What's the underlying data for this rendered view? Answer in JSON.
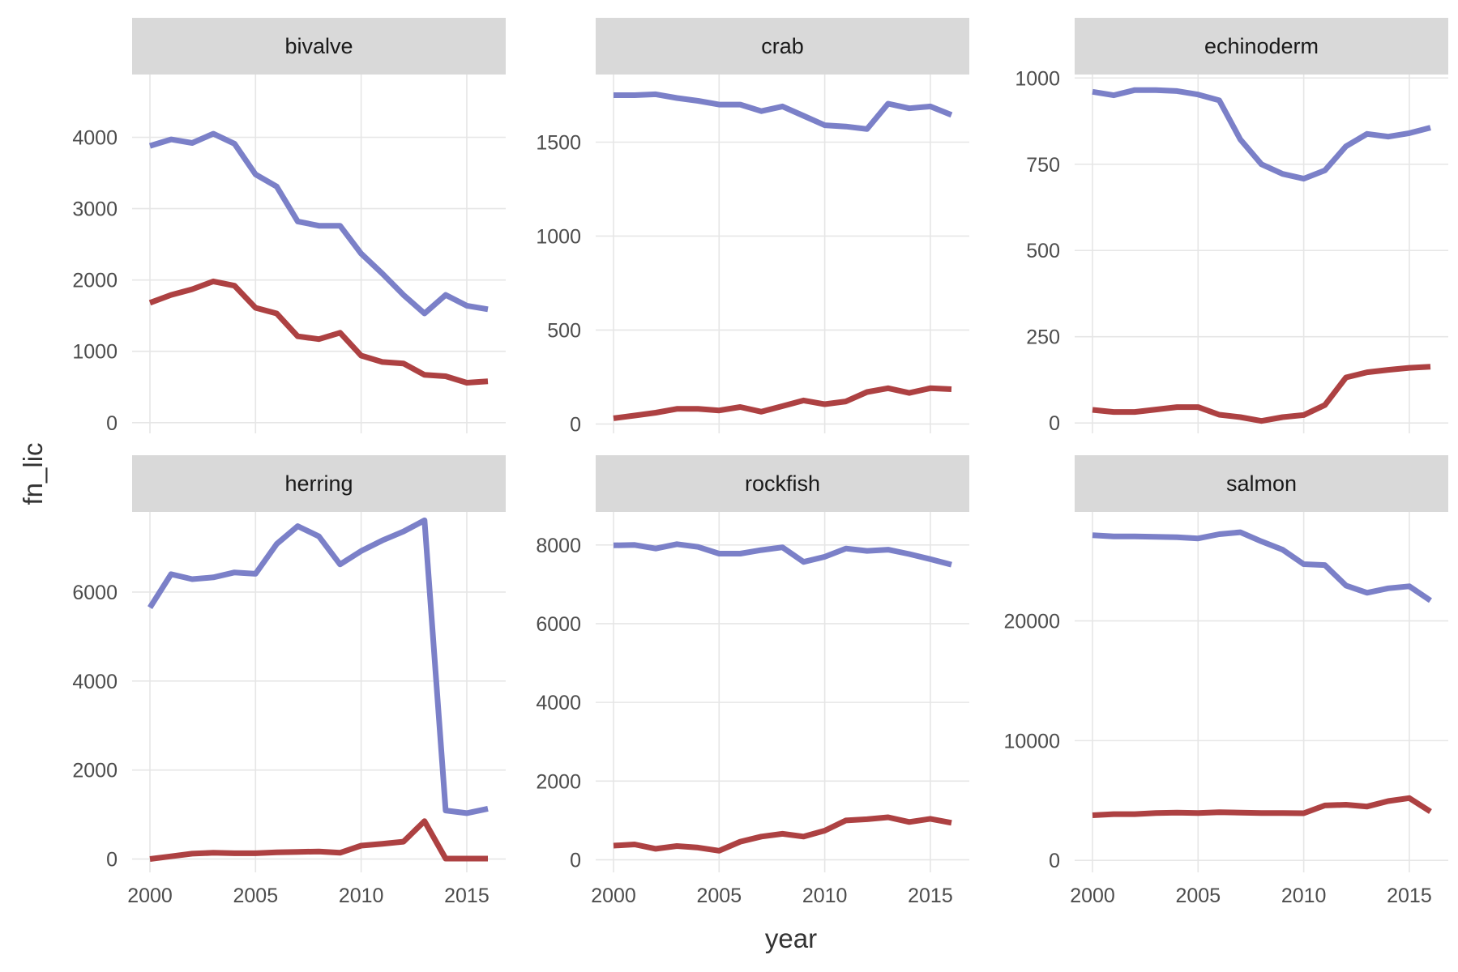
{
  "chart_data": {
    "type": "line",
    "xlabel": "year",
    "ylabel": "fn_lic",
    "x_ticks": [
      2000,
      2005,
      2010,
      2015
    ],
    "xlim": [
      2000,
      2016
    ],
    "grid": true,
    "series_colors": [
      "#7b80c8",
      "#ad4142"
    ],
    "x": [
      2000,
      2001,
      2002,
      2003,
      2004,
      2005,
      2006,
      2007,
      2008,
      2009,
      2010,
      2011,
      2012,
      2013,
      2014,
      2015,
      2016
    ],
    "panels": [
      {
        "title": "bivalve",
        "ylim": [
          -150,
          4880
        ],
        "y_ticks": [
          0,
          1000,
          2000,
          3000,
          4000
        ],
        "series": [
          {
            "values": [
              3880,
              3970,
              3920,
              4050,
              3910,
              3480,
              3310,
              2820,
              2760,
              2760,
              2370,
              2090,
              1790,
              1530,
              1790,
              1640,
              1590
            ]
          },
          {
            "values": [
              1680,
              1790,
              1870,
              1980,
              1920,
              1610,
              1530,
              1210,
              1170,
              1260,
              940,
              850,
              830,
              670,
              650,
              560,
              580
            ]
          }
        ]
      },
      {
        "title": "crab",
        "ylim": [
          -50,
          1860
        ],
        "y_ticks": [
          0,
          500,
          1000,
          1500
        ],
        "series": [
          {
            "values": [
              1750,
              1750,
              1755,
              1735,
              1720,
              1700,
              1700,
              1665,
              1690,
              1640,
              1590,
              1583,
              1570,
              1705,
              1680,
              1690,
              1645
            ]
          },
          {
            "values": [
              30,
              45,
              60,
              80,
              80,
              72,
              90,
              65,
              95,
              125,
              105,
              120,
              170,
              190,
              165,
              190,
              185
            ]
          }
        ]
      },
      {
        "title": "echinoderm",
        "ylim": [
          -30,
          1010
        ],
        "y_ticks": [
          0,
          250,
          500,
          750,
          1000
        ],
        "series": [
          {
            "values": [
              960,
              950,
              965,
              965,
              962,
              952,
              935,
              822,
              750,
              722,
              708,
              732,
              802,
              838,
              830,
              840,
              856
            ]
          },
          {
            "values": [
              38,
              32,
              32,
              39,
              46,
              46,
              24,
              17,
              6,
              17,
              23,
              52,
              132,
              147,
              154,
              160,
              163
            ]
          }
        ]
      },
      {
        "title": "herring",
        "ylim": [
          -300,
          7800
        ],
        "y_ticks": [
          0,
          2000,
          4000,
          6000
        ],
        "series": [
          {
            "values": [
              5650,
              6400,
              6290,
              6330,
              6440,
              6410,
              7080,
              7480,
              7250,
              6620,
              6920,
              7160,
              7360,
              7610,
              1090,
              1030,
              1130
            ]
          },
          {
            "values": [
              0,
              60,
              120,
              140,
              130,
              130,
              150,
              160,
              170,
              140,
              300,
              340,
              390,
              850,
              10,
              10,
              10
            ]
          }
        ]
      },
      {
        "title": "rockfish",
        "ylim": [
          -320,
          8840
        ],
        "y_ticks": [
          0,
          2000,
          4000,
          6000,
          8000
        ],
        "series": [
          {
            "values": [
              7990,
              8000,
              7910,
              8020,
              7950,
              7780,
              7780,
              7870,
              7940,
              7570,
              7700,
              7910,
              7850,
              7880,
              7770,
              7640,
              7500
            ]
          },
          {
            "values": [
              360,
              390,
              280,
              350,
              310,
              230,
              460,
              590,
              660,
              590,
              740,
              1000,
              1030,
              1080,
              960,
              1040,
              940
            ]
          }
        ]
      },
      {
        "title": "salmon",
        "ylim": [
          -1000,
          29100
        ],
        "y_ticks": [
          0,
          10000,
          20000
        ],
        "series": [
          {
            "values": [
              27150,
              27050,
              27050,
              27020,
              26990,
              26890,
              27240,
              27400,
              26640,
              25950,
              24740,
              24660,
              22950,
              22350,
              22720,
              22890,
              21700
            ]
          },
          {
            "values": [
              3770,
              3860,
              3860,
              3950,
              3990,
              3950,
              4020,
              3990,
              3960,
              3960,
              3940,
              4590,
              4650,
              4500,
              4950,
              5200,
              4080
            ]
          }
        ]
      }
    ]
  }
}
